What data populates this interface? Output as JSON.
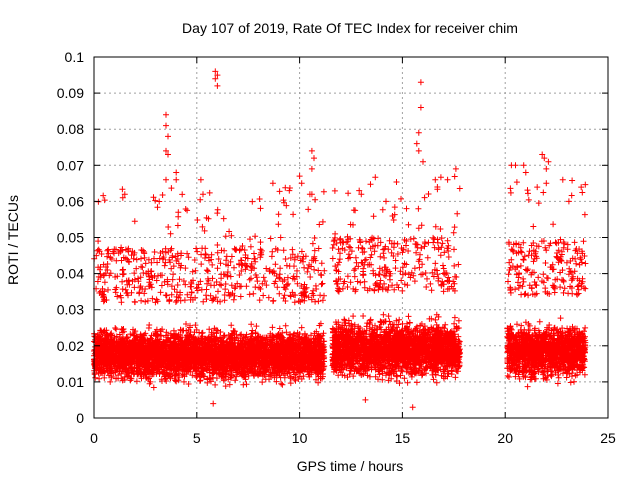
{
  "chart_data": {
    "type": "scatter",
    "title": "Day 107 of 2019, Rate Of TEC Index for receiver chim",
    "xlabel": "GPS time / hours",
    "ylabel": "ROTI / TECUs",
    "xlim": [
      0,
      25
    ],
    "ylim": [
      0,
      0.1
    ],
    "x_ticks": [
      0,
      5,
      10,
      15,
      20,
      25
    ],
    "x_tick_labels": [
      "0",
      "5",
      "10",
      "15",
      "20",
      "25"
    ],
    "y_ticks": [
      0,
      0.01,
      0.02,
      0.03,
      0.04,
      0.05,
      0.06,
      0.07,
      0.08,
      0.09,
      0.1
    ],
    "y_tick_labels": [
      "0",
      "0.01",
      "0.02",
      "0.03",
      "0.04",
      "0.05",
      "0.06",
      "0.07",
      "0.08",
      "0.09",
      "0.1"
    ],
    "grid": true,
    "marker": "+",
    "marker_color": "#ff0000",
    "data_segments": [
      {
        "x_start": 0.0,
        "x_end": 11.2,
        "typical_y": [
          0.007,
          0.032
        ]
      },
      {
        "x_start": 11.6,
        "x_end": 17.8,
        "typical_y": [
          0.007,
          0.035
        ]
      },
      {
        "x_start": 20.1,
        "x_end": 23.9,
        "typical_y": [
          0.007,
          0.034
        ]
      }
    ],
    "notable_points": [
      {
        "x": 0.2,
        "y": 0.049
      },
      {
        "x": 1.4,
        "y": 0.061
      },
      {
        "x": 1.5,
        "y": 0.062
      },
      {
        "x": 3.5,
        "y": 0.084
      },
      {
        "x": 3.5,
        "y": 0.081
      },
      {
        "x": 3.6,
        "y": 0.078
      },
      {
        "x": 3.5,
        "y": 0.074
      },
      {
        "x": 3.6,
        "y": 0.073
      },
      {
        "x": 3.5,
        "y": 0.066
      },
      {
        "x": 4.0,
        "y": 0.068
      },
      {
        "x": 4.0,
        "y": 0.066
      },
      {
        "x": 4.1,
        "y": 0.057
      },
      {
        "x": 5.2,
        "y": 0.066
      },
      {
        "x": 5.3,
        "y": 0.062
      },
      {
        "x": 5.9,
        "y": 0.096
      },
      {
        "x": 5.9,
        "y": 0.094
      },
      {
        "x": 6.0,
        "y": 0.095
      },
      {
        "x": 6.0,
        "y": 0.092
      },
      {
        "x": 8.7,
        "y": 0.065
      },
      {
        "x": 9.5,
        "y": 0.063
      },
      {
        "x": 10.0,
        "y": 0.067
      },
      {
        "x": 10.1,
        "y": 0.065
      },
      {
        "x": 10.6,
        "y": 0.074
      },
      {
        "x": 10.7,
        "y": 0.072
      },
      {
        "x": 10.6,
        "y": 0.069
      },
      {
        "x": 10.5,
        "y": 0.062
      },
      {
        "x": 12.9,
        "y": 0.063
      },
      {
        "x": 13.0,
        "y": 0.062
      },
      {
        "x": 14.2,
        "y": 0.06
      },
      {
        "x": 15.2,
        "y": 0.058
      },
      {
        "x": 15.7,
        "y": 0.076
      },
      {
        "x": 15.8,
        "y": 0.079
      },
      {
        "x": 15.9,
        "y": 0.093
      },
      {
        "x": 15.9,
        "y": 0.086
      },
      {
        "x": 15.8,
        "y": 0.074
      },
      {
        "x": 16.0,
        "y": 0.071
      },
      {
        "x": 16.6,
        "y": 0.066
      },
      {
        "x": 16.7,
        "y": 0.064
      },
      {
        "x": 17.2,
        "y": 0.066
      },
      {
        "x": 17.6,
        "y": 0.069
      },
      {
        "x": 20.3,
        "y": 0.07
      },
      {
        "x": 20.5,
        "y": 0.07
      },
      {
        "x": 20.9,
        "y": 0.07
      },
      {
        "x": 21.0,
        "y": 0.068
      },
      {
        "x": 21.8,
        "y": 0.073
      },
      {
        "x": 21.9,
        "y": 0.072
      },
      {
        "x": 22.0,
        "y": 0.069
      },
      {
        "x": 22.0,
        "y": 0.065
      },
      {
        "x": 22.1,
        "y": 0.071
      },
      {
        "x": 22.8,
        "y": 0.066
      },
      {
        "x": 23.1,
        "y": 0.06
      },
      {
        "x": 15.5,
        "y": 0.003
      },
      {
        "x": 5.8,
        "y": 0.004
      },
      {
        "x": 13.2,
        "y": 0.005
      }
    ]
  }
}
